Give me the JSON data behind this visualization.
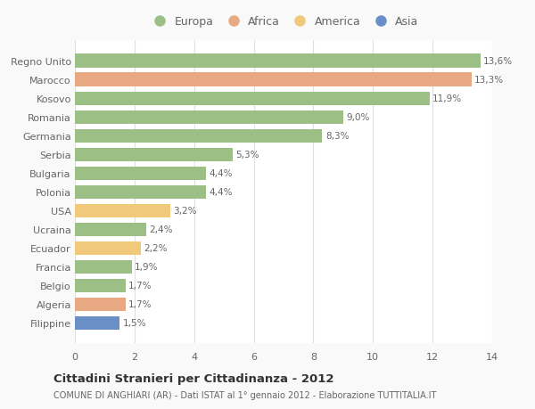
{
  "categories": [
    "Filippine",
    "Algeria",
    "Belgio",
    "Francia",
    "Ecuador",
    "Ucraina",
    "USA",
    "Polonia",
    "Bulgaria",
    "Serbia",
    "Germania",
    "Romania",
    "Kosovo",
    "Marocco",
    "Regno Unito"
  ],
  "values": [
    1.5,
    1.7,
    1.7,
    1.9,
    2.2,
    2.4,
    3.2,
    4.4,
    4.4,
    5.3,
    8.3,
    9.0,
    11.9,
    13.3,
    13.6
  ],
  "labels": [
    "1,5%",
    "1,7%",
    "1,7%",
    "1,9%",
    "2,2%",
    "2,4%",
    "3,2%",
    "4,4%",
    "4,4%",
    "5,3%",
    "8,3%",
    "9,0%",
    "11,9%",
    "13,3%",
    "13,6%"
  ],
  "colors": [
    "#6a8fc7",
    "#e8a882",
    "#9bbf85",
    "#9bbf85",
    "#f0c97a",
    "#9bbf85",
    "#f0c97a",
    "#9bbf85",
    "#9bbf85",
    "#9bbf85",
    "#9bbf85",
    "#9bbf85",
    "#9bbf85",
    "#e8a882",
    "#9bbf85"
  ],
  "legend_labels": [
    "Europa",
    "Africa",
    "America",
    "Asia"
  ],
  "legend_colors": [
    "#9bbf85",
    "#e8a882",
    "#f0c97a",
    "#6a8fc7"
  ],
  "title": "Cittadini Stranieri per Cittadinanza - 2012",
  "subtitle": "COMUNE DI ANGHIARI (AR) - Dati ISTAT al 1° gennaio 2012 - Elaborazione TUTTITALIA.IT",
  "xlim": [
    0,
    14
  ],
  "xticks": [
    0,
    2,
    4,
    6,
    8,
    10,
    12,
    14
  ],
  "background_color": "#f9f9f9",
  "bar_background": "#ffffff",
  "grid_color": "#e0e0e0"
}
